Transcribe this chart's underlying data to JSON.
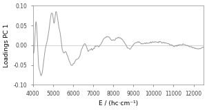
{
  "xlim": [
    4000,
    12500
  ],
  "ylim": [
    -0.1,
    0.1
  ],
  "xlabel": "E / (hc·cm⁻¹)",
  "ylabel": "Loadings PC 1",
  "xticks": [
    4000,
    5000,
    6000,
    7000,
    8000,
    9000,
    10000,
    11000,
    12000
  ],
  "yticks": [
    -0.1,
    -0.05,
    0.0,
    0.05,
    0.1
  ],
  "line_color": "#999999",
  "zero_line_color": "#cccccc",
  "background_color": "#ffffff",
  "linewidth": 0.7,
  "figsize": [
    3.0,
    1.6
  ],
  "dpi": 100
}
